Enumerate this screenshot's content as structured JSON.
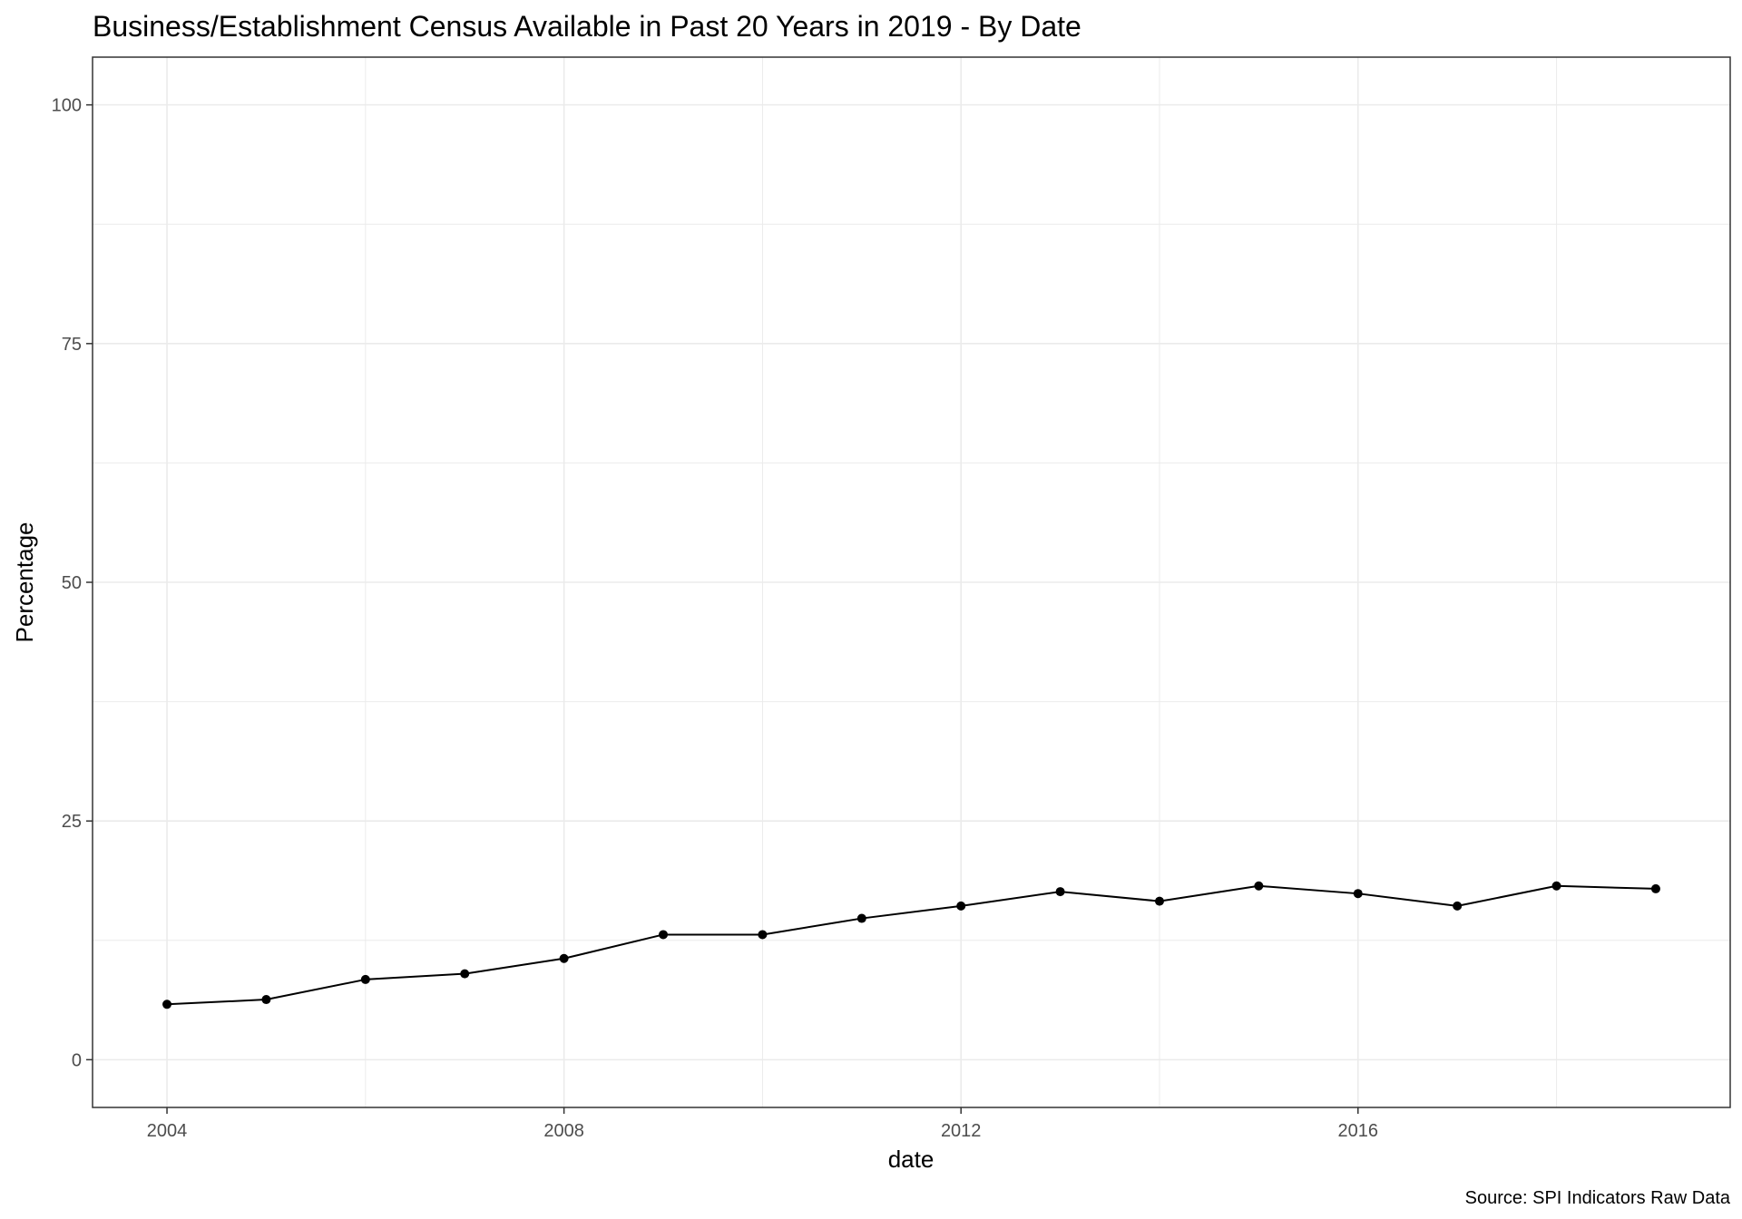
{
  "chart_data": {
    "type": "line",
    "title": "Business/Establishment Census Available in Past 20 Years in 2019 - By Date",
    "xlabel": "date",
    "ylabel": "Percentage",
    "caption": "Source: SPI Indicators Raw Data",
    "x": [
      2004,
      2005,
      2006,
      2007,
      2008,
      2009,
      2010,
      2011,
      2012,
      2013,
      2014,
      2015,
      2016,
      2017,
      2018,
      2019
    ],
    "series": [
      {
        "values": [
          5.8,
          6.3,
          8.4,
          9.0,
          10.6,
          13.1,
          13.1,
          14.8,
          16.1,
          17.6,
          16.6,
          18.2,
          17.4,
          16.1,
          18.2,
          17.9
        ]
      }
    ],
    "xlim": [
      2003.25,
      2019.75
    ],
    "ylim": [
      -5,
      105
    ],
    "x_ticks": [
      2004,
      2008,
      2012,
      2016
    ],
    "x_tick_labels": [
      "2004",
      "2008",
      "2012",
      "2016"
    ],
    "y_ticks": [
      0,
      25,
      50,
      75,
      100
    ],
    "y_tick_labels": [
      "0",
      "25",
      "50",
      "75",
      "100"
    ],
    "x_minor_ticks": [
      2006,
      2010,
      2014,
      2018
    ],
    "y_minor_ticks": [
      12.5,
      37.5,
      62.5,
      87.5
    ],
    "grid": true,
    "line_color": "#000000",
    "point_color": "#000000",
    "grid_color": "#ebebeb",
    "background_color": "#ffffff"
  }
}
